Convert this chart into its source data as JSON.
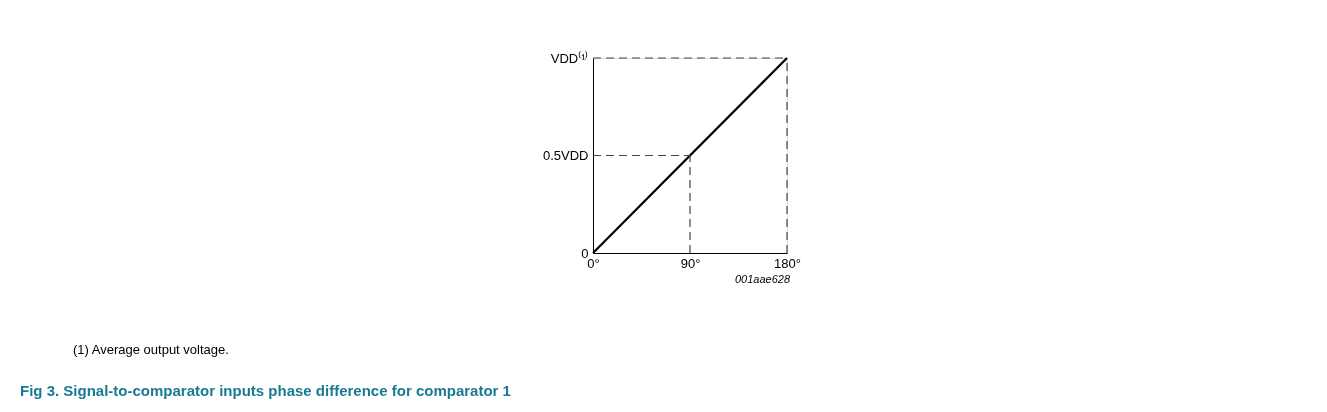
{
  "chart_data": {
    "type": "line",
    "title": "Fig 3.     Signal-to-comparator inputs phase difference for comparator 1",
    "x": [
      0,
      180
    ],
    "series": [
      {
        "color": "#000000",
        "values": [
          0,
          1
        ]
      }
    ],
    "xlim": [
      0,
      180
    ],
    "ylim": [
      0,
      1
    ],
    "xticks": [
      {
        "value": 0,
        "label": "0°"
      },
      {
        "value": 90,
        "label": "90°"
      },
      {
        "value": 180,
        "label": "180°"
      }
    ],
    "yticks": [
      0,
      {
        "value": 0.5,
        "label": "0.5VDD"
      },
      {
        "value": 1,
        "label": "VDD⁽¹⁾"
      }
    ],
    "ref_lines": [
      {
        "axis": "y",
        "value": 1,
        "line_style": "dashed",
        "color": "#444444"
      },
      {
        "axis": "x",
        "value": 180,
        "line_style": "dashed",
        "color": "#444444"
      },
      {
        "axis": "y",
        "value": 0.5,
        "line_style": "dashed",
        "color": "#444444"
      },
      {
        "axis": "x",
        "value": 90,
        "line_style": "dashed",
        "color": "#444444"
      }
    ],
    "annotations": [
      "001aae628",
      "(1)   Average output voltage."
    ],
    "grid": false,
    "marker": "none",
    "line_style": "solid"
  }
}
